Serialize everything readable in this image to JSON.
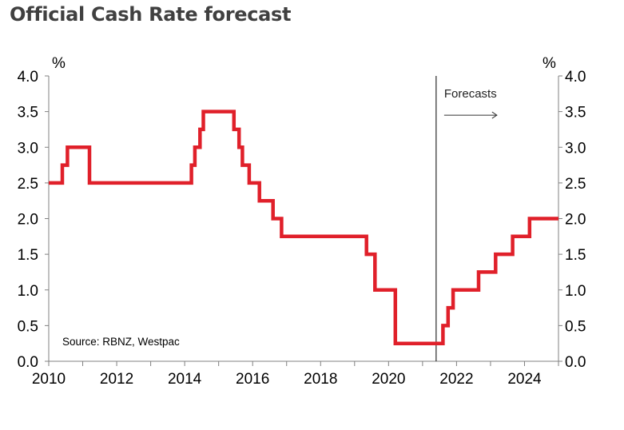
{
  "chart_data": {
    "type": "line",
    "title": "Official Cash Rate forecast",
    "y_unit_left": "%",
    "y_unit_right": "%",
    "ylim": [
      0,
      4
    ],
    "xlim": [
      2010,
      2025
    ],
    "y_ticks": [
      "0.0",
      "0.5",
      "1.0",
      "1.5",
      "2.0",
      "2.5",
      "3.0",
      "3.5",
      "4.0"
    ],
    "y_tick_values": [
      0,
      0.5,
      1,
      1.5,
      2,
      2.5,
      3,
      3.5,
      4
    ],
    "x_ticks": [
      "2010",
      "2012",
      "2014",
      "2016",
      "2018",
      "2020",
      "2022",
      "2024"
    ],
    "x_tick_values": [
      2010,
      2012,
      2014,
      2016,
      2018,
      2020,
      2022,
      2024
    ],
    "forecast_start": 2021.4,
    "forecast_label": "Forecasts",
    "source": "Source: RBNZ, Westpac",
    "line_color": "#e0202a",
    "series": [
      {
        "name": "Official Cash Rate",
        "step": true,
        "points": [
          [
            2010.0,
            2.5
          ],
          [
            2010.4,
            2.75
          ],
          [
            2010.55,
            3.0
          ],
          [
            2011.2,
            2.5
          ],
          [
            2014.2,
            2.75
          ],
          [
            2014.3,
            3.0
          ],
          [
            2014.45,
            3.25
          ],
          [
            2014.55,
            3.5
          ],
          [
            2015.45,
            3.25
          ],
          [
            2015.6,
            3.0
          ],
          [
            2015.7,
            2.75
          ],
          [
            2015.9,
            2.5
          ],
          [
            2016.2,
            2.25
          ],
          [
            2016.6,
            2.0
          ],
          [
            2016.85,
            1.75
          ],
          [
            2019.35,
            1.5
          ],
          [
            2019.6,
            1.0
          ],
          [
            2020.2,
            0.25
          ],
          [
            2021.6,
            0.5
          ],
          [
            2021.75,
            0.75
          ],
          [
            2021.9,
            1.0
          ],
          [
            2022.65,
            1.25
          ],
          [
            2023.15,
            1.5
          ],
          [
            2023.65,
            1.75
          ],
          [
            2024.15,
            2.0
          ],
          [
            2025.0,
            2.0
          ]
        ]
      }
    ]
  }
}
